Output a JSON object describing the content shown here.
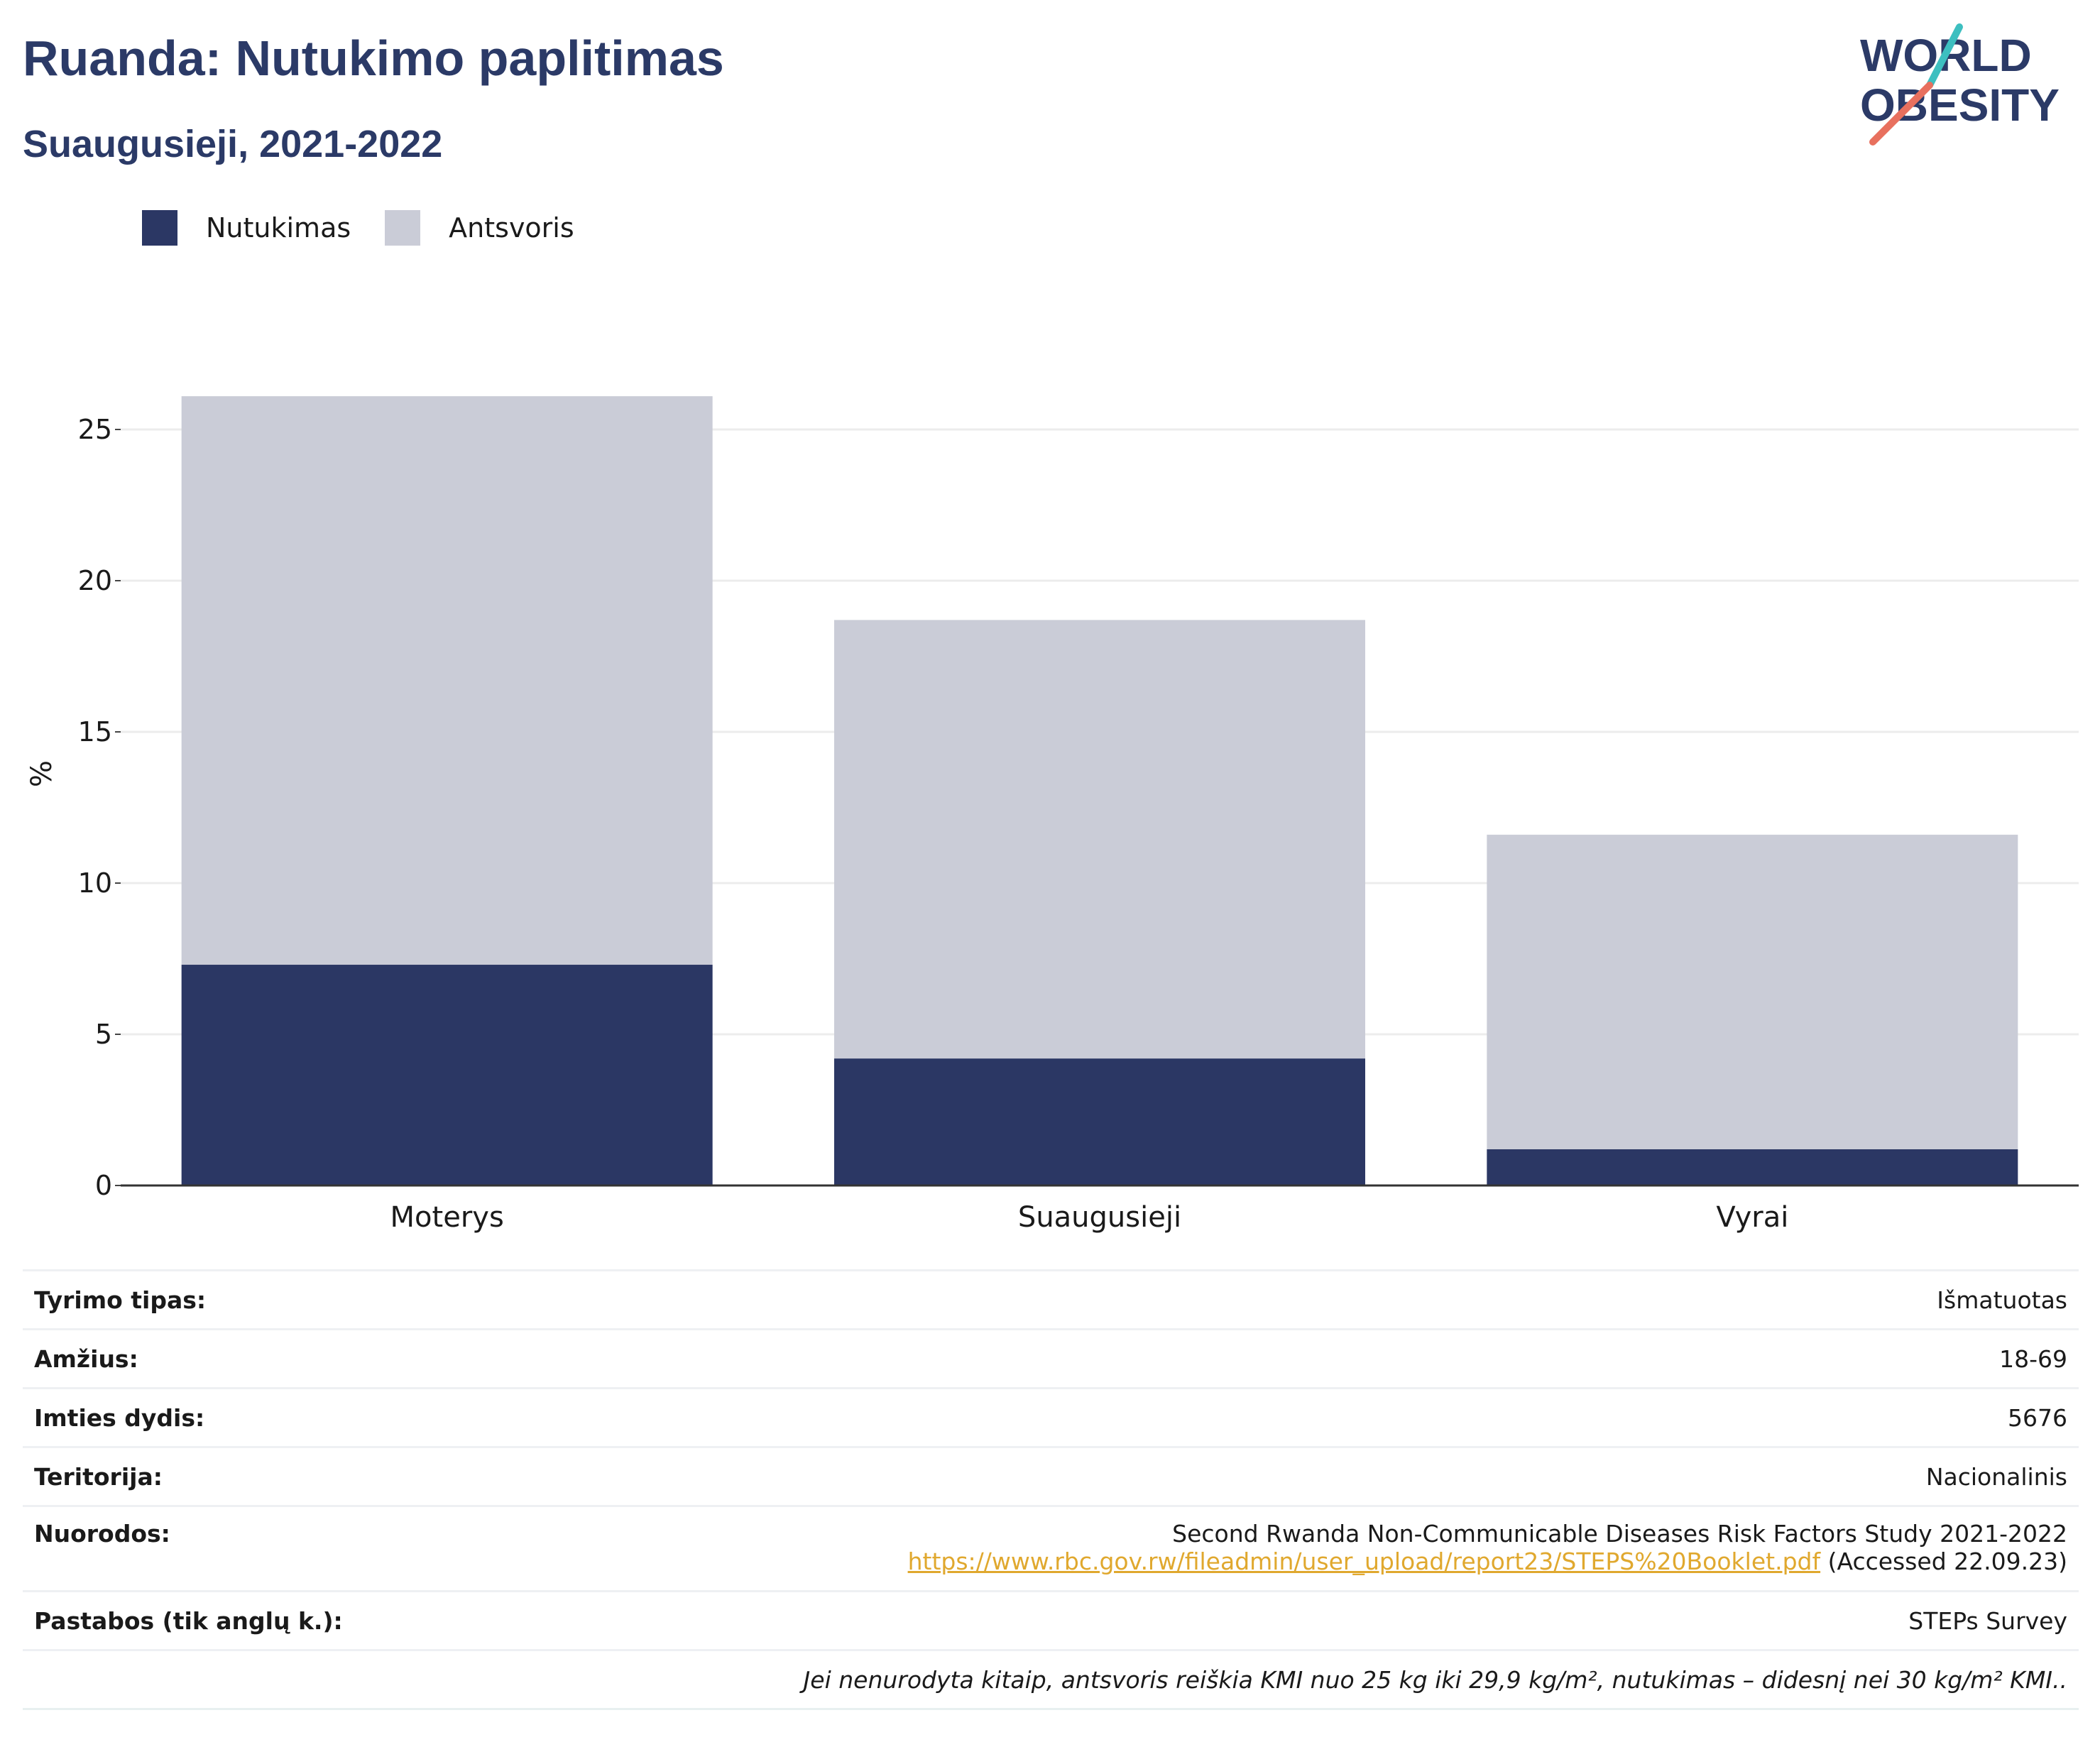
{
  "header": {
    "title": "Ruanda: Nutukimo paplitimas",
    "subtitle": "Suaugusieji, 2021-2022",
    "logo_line1": "WORLD",
    "logo_line2": "OBESITY"
  },
  "colors": {
    "obesity": "#2b3764",
    "overweight": "#caccd7",
    "title": "#2b3a67",
    "link": "#e0a82e"
  },
  "legend": [
    {
      "label": "Nutukimas",
      "color": "#2b3764"
    },
    {
      "label": "Antsvoris",
      "color": "#caccd7"
    }
  ],
  "chart_data": {
    "type": "bar",
    "stacked": true,
    "categories": [
      "Moterys",
      "Suaugusieji",
      "Vyrai"
    ],
    "series": [
      {
        "name": "Nutukimas",
        "values": [
          7.3,
          4.2,
          1.2
        ]
      },
      {
        "name": "Antsvoris",
        "values": [
          18.8,
          14.5,
          10.4
        ]
      }
    ],
    "ylabel": "%",
    "ylim": [
      0,
      27
    ],
    "yticks": [
      0,
      5,
      10,
      15,
      20,
      25
    ],
    "grid": true,
    "legend_position": "top-left"
  },
  "meta": {
    "rows": [
      {
        "label": "Tyrimo tipas:",
        "value": "Išmatuotas"
      },
      {
        "label": "Amžius:",
        "value": "18-69"
      },
      {
        "label": "Imties dydis:",
        "value": "5676"
      },
      {
        "label": "Teritorija:",
        "value": "Nacionalinis"
      }
    ],
    "references_label": "Nuorodos:",
    "references_title": "Second Rwanda Non-Communicable Diseases Risk Factors Study 2021-2022",
    "references_url": "https://www.rbc.gov.rw/fileadmin/user_upload/report23/STEPS%20Booklet.pdf",
    "references_accessed": " (Accessed 22.09.23)",
    "notes_label": "Pastabos (tik anglų k.):",
    "notes_value": "STEPs Survey",
    "footnote": "Jei nenurodyta kitaip, antsvoris reiškia KMI nuo 25 kg iki 29,9 kg/m², nutukimas – didesnį nei 30 kg/m² KMI.."
  }
}
